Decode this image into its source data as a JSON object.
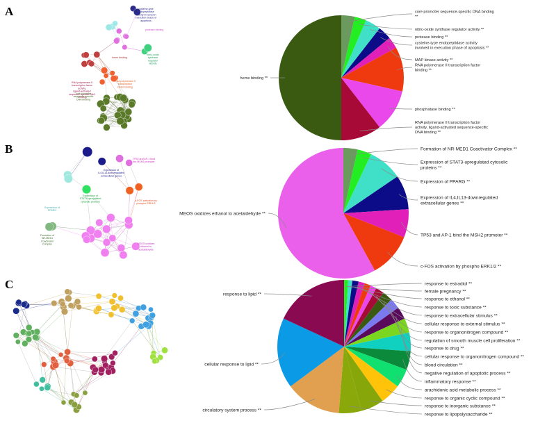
{
  "panels": [
    {
      "letter": "A"
    },
    {
      "letter": "B"
    },
    {
      "letter": "C"
    }
  ],
  "networks": {
    "A": [
      {
        "text": "cysteine-type endopeptidase activity involved in execution phase of apoptosis",
        "color": "#2b2b8a"
      },
      {
        "text": "heme binding",
        "color": "#b03030"
      },
      {
        "text": "protease binding",
        "color": "#d050d0"
      },
      {
        "text": "nitric-oxide synthase regulator activity",
        "color": "#20a060"
      },
      {
        "text": "RNA polymerase II transcription factor activity, ligand-activated sequence-specific DNA binding",
        "color": "#a02050"
      },
      {
        "text": "RNA polymerase II transcription factor binding",
        "color": "#e06020"
      },
      {
        "text": "core promoter sequence-specific DNA binding",
        "color": "#4a6a2a"
      }
    ],
    "B": [
      {
        "text": "TP53 and AP-1 bind the MSH2 promoter",
        "color": "#d030c0"
      },
      {
        "text": "Expression of IL4,IL13-downregulated extracellular genes",
        "color": "#1a1a8a"
      },
      {
        "text": "Expression of STAT3-upregulated cytosolic proteins",
        "color": "#20a040"
      },
      {
        "text": "c-FOS activation by phospho ERK1/2",
        "color": "#e05020"
      },
      {
        "text": "Formation of NR-MED1 Coactivator Complex",
        "color": "#406a30"
      },
      {
        "text": "Expression of PPARG",
        "color": "#40b0b0"
      },
      {
        "text": "MEOS oxidizes ethanol to acetaldehyde",
        "color": "#c030c0"
      }
    ]
  },
  "chart_data": [
    {
      "type": "pie",
      "title": "",
      "slices": [
        {
          "label": "core promoter sequence-specific DNA binding **",
          "value": 3.5,
          "color": "#6b9a5e"
        },
        {
          "label": "nitric-oxide synthase regulator activity **",
          "value": 3.0,
          "color": "#22ee22"
        },
        {
          "label": "protease binding **",
          "value": 4.0,
          "color": "#40e0c8"
        },
        {
          "label": "cysteine-type endopeptidase activity involved in execution phase of apoptosis **",
          "value": 3.5,
          "color": "#0c0c88"
        },
        {
          "label": "MAP kinase activity **",
          "value": 3.0,
          "color": "#e020b8"
        },
        {
          "label": "RNA polymerase II transcription factor binding **",
          "value": 11.5,
          "color": "#ee3a0e"
        },
        {
          "label": "phosphatase binding **",
          "value": 11.0,
          "color": "#ea48ea"
        },
        {
          "label": "RNA polymerase II transcription factor activity, ligand-activated sequence-specific DNA binding **",
          "value": 10.5,
          "color": "#a80a38"
        },
        {
          "label": "heme binding **",
          "value": 50.0,
          "color": "#3a5a12"
        }
      ]
    },
    {
      "type": "pie",
      "title": "",
      "slices": [
        {
          "label": "Formation of NR-MED1 Coactivator Complex **",
          "value": 3.5,
          "color": "#6b9a5e"
        },
        {
          "label": "Expression of STAT3-upregulated cytosolic proteins **",
          "value": 3.5,
          "color": "#22ee22"
        },
        {
          "label": "Expression of PPARG **",
          "value": 8.5,
          "color": "#40e0c8"
        },
        {
          "label": "Expression of IL4,IL13-downregulated extracellular genes **",
          "value": 8.5,
          "color": "#0c0c88"
        },
        {
          "label": "TP53 and AP-1 bind the MSH2 promoter **",
          "value": 7.0,
          "color": "#e020b8"
        },
        {
          "label": "c-FOS activation by phospho ERK1/2 **",
          "value": 11.0,
          "color": "#ee3a0e"
        },
        {
          "label": "MEOS oxidizes ethanol to acetaldehyde **",
          "value": 58.0,
          "color": "#ea60ea"
        }
      ]
    },
    {
      "type": "pie",
      "title": "",
      "slices": [
        {
          "label": "response to estradiol **",
          "value": 1.0,
          "color": "#22ee22"
        },
        {
          "label": "female pregnancy **",
          "value": 1.0,
          "color": "#40e0c8"
        },
        {
          "label": "response to ethanol **",
          "value": 1.5,
          "color": "#0c0c88"
        },
        {
          "label": "response to toxic substance **",
          "value": 1.5,
          "color": "#e020b8"
        },
        {
          "label": "response to extracellular stimulus **",
          "value": 1.5,
          "color": "#ee3a0e"
        },
        {
          "label": "cellular response to external stimulus **",
          "value": 1.5,
          "color": "#ea48ea"
        },
        {
          "label": "response to organonitrogen compound **",
          "value": 2.0,
          "color": "#a80a38"
        },
        {
          "label": "regulation of smooth muscle cell proliferation **",
          "value": 2.5,
          "color": "#3a5a12"
        },
        {
          "label": "response to drug **",
          "value": 2.5,
          "color": "#7a7aee"
        },
        {
          "label": "cellular response to organonitrogen compound **",
          "value": 3.0,
          "color": "#5a0a5a"
        },
        {
          "label": "blood circulation **",
          "value": 3.5,
          "color": "#7ad61e"
        },
        {
          "label": "negative regulation of apoptotic process **",
          "value": 4.5,
          "color": "#10d0c0"
        },
        {
          "label": "inflammatory response **",
          "value": 4.5,
          "color": "#0a8a3a"
        },
        {
          "label": "arachidonic acid metabolic process **",
          "value": 4.5,
          "color": "#10e070"
        },
        {
          "label": "response to organic cyclic compound **",
          "value": 5.0,
          "color": "#ffc40a"
        },
        {
          "label": "response to inorganic substance **",
          "value": 5.5,
          "color": "#86a60a"
        },
        {
          "label": "response to lipopolysaccharide **",
          "value": 5.5,
          "color": "#8aa80a"
        },
        {
          "label": "circulatory system process **",
          "value": 13.5,
          "color": "#e0a050"
        },
        {
          "label": "cellular response to lipid **",
          "value": 17.0,
          "color": "#0a9ae6"
        },
        {
          "label": "response to lipid **",
          "value": 18.0,
          "color": "#8a0a52"
        }
      ]
    }
  ]
}
